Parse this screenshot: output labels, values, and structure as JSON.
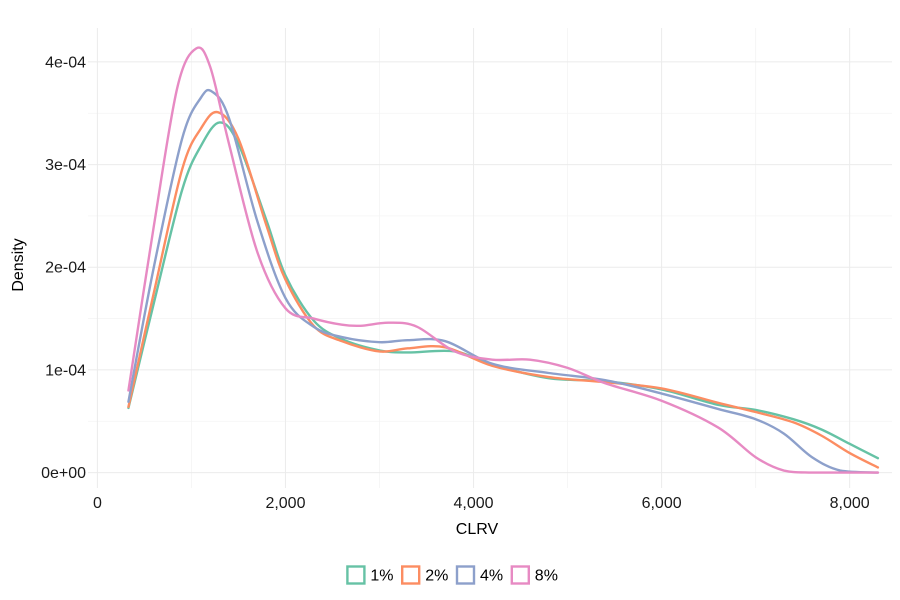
{
  "chart_data": {
    "type": "line",
    "xlabel": "CLRV",
    "ylabel": "Density",
    "xlim": [
      -100,
      8450
    ],
    "ylim": [
      -1.5e-05,
      0.000433
    ],
    "x_ticks": [
      0,
      2000,
      4000,
      6000,
      8000
    ],
    "x_tick_labels": [
      "0",
      "2,000",
      "4,000",
      "6,000",
      "8,000"
    ],
    "y_ticks": [
      0,
      0.0001,
      0.0002,
      0.0003,
      0.0004
    ],
    "y_tick_labels": [
      "0e+00",
      "1e-04",
      "2e-04",
      "3e-04",
      "4e-04"
    ],
    "grid": true,
    "legend_position": "bottom",
    "series": [
      {
        "name": "1%",
        "color": "#66c2a5",
        "points": [
          [
            330,
            6.3e-05
          ],
          [
            600,
            0.000165
          ],
          [
            900,
            0.000275
          ],
          [
            1100,
            0.000318
          ],
          [
            1300,
            0.000341
          ],
          [
            1500,
            0.00032
          ],
          [
            1800,
            0.000245
          ],
          [
            2000,
            0.000192
          ],
          [
            2300,
            0.000148
          ],
          [
            2600,
            0.00013
          ],
          [
            3000,
            0.000119
          ],
          [
            3300,
            0.000117
          ],
          [
            3800,
            0.000118
          ],
          [
            4200,
            0.000105
          ],
          [
            4800,
            9.2e-05
          ],
          [
            5400,
            8.9e-05
          ],
          [
            6000,
            8.1e-05
          ],
          [
            6600,
            6.6e-05
          ],
          [
            7000,
            6.1e-05
          ],
          [
            7400,
            5.2e-05
          ],
          [
            7700,
            4.2e-05
          ],
          [
            8000,
            2.8e-05
          ],
          [
            8300,
            1.4e-05
          ]
        ]
      },
      {
        "name": "2%",
        "color": "#fc8d62",
        "points": [
          [
            330,
            6.4e-05
          ],
          [
            600,
            0.000175
          ],
          [
            900,
            0.000295
          ],
          [
            1100,
            0.000335
          ],
          [
            1280,
            0.000351
          ],
          [
            1500,
            0.000325
          ],
          [
            1800,
            0.00024
          ],
          [
            2000,
            0.000188
          ],
          [
            2300,
            0.000143
          ],
          [
            2600,
            0.000128
          ],
          [
            3000,
            0.000118
          ],
          [
            3300,
            0.000121
          ],
          [
            3700,
            0.000122
          ],
          [
            4200,
            0.000104
          ],
          [
            4800,
            9.3e-05
          ],
          [
            5400,
            8.8e-05
          ],
          [
            6000,
            8.2e-05
          ],
          [
            6600,
            6.8e-05
          ],
          [
            7000,
            5.9e-05
          ],
          [
            7400,
            4.9e-05
          ],
          [
            7700,
            3.6e-05
          ],
          [
            8000,
            1.9e-05
          ],
          [
            8300,
            5e-06
          ]
        ]
      },
      {
        "name": "4%",
        "color": "#8da0cb",
        "points": [
          [
            330,
            6.9e-05
          ],
          [
            600,
            0.0002
          ],
          [
            900,
            0.000325
          ],
          [
            1100,
            0.000365
          ],
          [
            1220,
            0.000371
          ],
          [
            1400,
            0.000345
          ],
          [
            1700,
            0.000245
          ],
          [
            2000,
            0.00017
          ],
          [
            2300,
            0.000142
          ],
          [
            2600,
            0.000132
          ],
          [
            3000,
            0.000127
          ],
          [
            3300,
            0.000129
          ],
          [
            3700,
            0.000128
          ],
          [
            4200,
            0.000106
          ],
          [
            4800,
            9.7e-05
          ],
          [
            5400,
            9e-05
          ],
          [
            6000,
            7.7e-05
          ],
          [
            6600,
            6.2e-05
          ],
          [
            7000,
            5.2e-05
          ],
          [
            7300,
            3.8e-05
          ],
          [
            7600,
            1.5e-05
          ],
          [
            7900,
            2e-06
          ],
          [
            8300,
            0.0
          ]
        ]
      },
      {
        "name": "8%",
        "color": "#e78ac3",
        "points": [
          [
            330,
            8e-05
          ],
          [
            600,
            0.00024
          ],
          [
            850,
            0.000375
          ],
          [
            1050,
            0.000413
          ],
          [
            1200,
            0.000395
          ],
          [
            1400,
            0.00032
          ],
          [
            1700,
            0.000215
          ],
          [
            2000,
            0.00016
          ],
          [
            2300,
            0.00015
          ],
          [
            2600,
            0.000144
          ],
          [
            2800,
            0.000143
          ],
          [
            3100,
            0.000146
          ],
          [
            3400,
            0.000142
          ],
          [
            3800,
            0.000118
          ],
          [
            4200,
            0.00011
          ],
          [
            4600,
            0.00011
          ],
          [
            5000,
            0.000102
          ],
          [
            5400,
            8.7e-05
          ],
          [
            6000,
            7e-05
          ],
          [
            6600,
            4.4e-05
          ],
          [
            7000,
            1.5e-05
          ],
          [
            7300,
            2e-06
          ],
          [
            7600,
            0.0
          ],
          [
            8300,
            0.0
          ]
        ]
      }
    ]
  }
}
